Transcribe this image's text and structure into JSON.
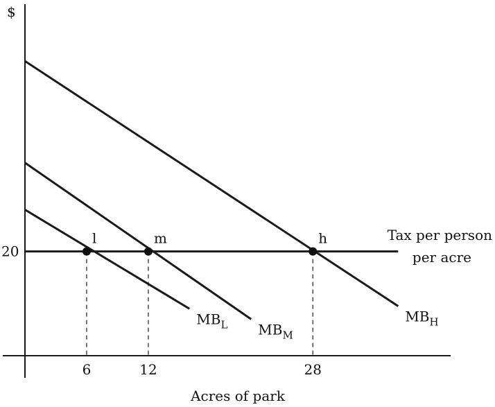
{
  "chart_data": {
    "type": "line",
    "title": "",
    "xlabel": "Acres of park",
    "ylabel": "$",
    "x_ticks": [
      {
        "value": 6,
        "label": "6"
      },
      {
        "value": 12,
        "label": "12"
      },
      {
        "value": 28,
        "label": "28"
      }
    ],
    "y_ticks": [
      {
        "value": 20,
        "label": "20"
      }
    ],
    "xlim": [
      0,
      41
    ],
    "ylim": [
      0,
      72
    ],
    "grid": false,
    "series": [
      {
        "name": "MB_L",
        "label_main": "MB",
        "label_sub": "L",
        "x": [
          0,
          16
        ],
        "y": [
          28,
          9
        ]
      },
      {
        "name": "MB_M",
        "label_main": "MB",
        "label_sub": "M",
        "x": [
          0,
          22
        ],
        "y": [
          37,
          7
        ]
      },
      {
        "name": "MB_H",
        "label_main": "MB",
        "label_sub": "H",
        "x": [
          0,
          36.3
        ],
        "y": [
          56.5,
          9.5
        ]
      }
    ],
    "tax_line": {
      "y": 20,
      "x": [
        0,
        36.3
      ],
      "label_line1": "Tax per person",
      "label_line2": "per acre"
    },
    "points": [
      {
        "label": "l",
        "x": 6,
        "y": 20
      },
      {
        "label": "m",
        "x": 12,
        "y": 20
      },
      {
        "label": "h",
        "x": 28,
        "y": 20
      }
    ]
  }
}
